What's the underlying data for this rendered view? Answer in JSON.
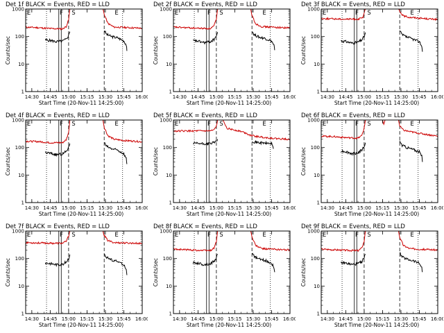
{
  "chart_data": {
    "type": "line",
    "layout": "3x3 grid of detector light curves",
    "xlabel": "Start Time (20-Nov-11 14:25:00)",
    "ylabel": "Counts/sec",
    "x_unit": "minutes after 14:25:00",
    "xlim": [
      0,
      95
    ],
    "xticks": [
      5,
      20,
      35,
      50,
      65,
      80,
      95
    ],
    "xtick_labels": [
      "14:30",
      "14:45",
      "15:00",
      "15:15",
      "15:30",
      "15:45",
      "16:00"
    ],
    "yscale": "log",
    "ylim": [
      1,
      1000
    ],
    "yticks": [
      1,
      10,
      100,
      1000
    ],
    "ytick_labels": [
      "1",
      "10",
      "100",
      "1000"
    ],
    "legend": "in title: BLACK = Events, RED = LLD",
    "series_colors": {
      "events": "#000000",
      "lld": "#cc0000"
    },
    "markers": [
      {
        "label": "E",
        "type": "label",
        "x": 0.5
      },
      {
        "label": "F",
        "type": "label",
        "x": 27
      },
      {
        "label": "S",
        "type": "label",
        "x": 37
      },
      {
        "label": "E",
        "type": "label",
        "x": 72
      },
      {
        "type": "dotted",
        "x": 17
      },
      {
        "type": "dotted",
        "x": 79
      },
      {
        "type": "solid",
        "x": 27
      },
      {
        "type": "solid",
        "x": 29
      },
      {
        "type": "dashed",
        "x": 35
      },
      {
        "type": "dashed",
        "x": 64
      }
    ],
    "panels": [
      {
        "title": "Det 1f BLACK = Events, RED = LLD",
        "lld": [
          [
            0,
            220
          ],
          [
            10,
            210
          ],
          [
            20,
            195
          ],
          [
            30,
            190
          ],
          [
            33,
            230
          ],
          [
            35,
            400
          ],
          [
            36,
            1000
          ],
          [
            63,
            1000
          ],
          [
            64,
            650
          ],
          [
            67,
            300
          ],
          [
            72,
            220
          ],
          [
            80,
            215
          ],
          [
            90,
            205
          ],
          [
            95,
            200
          ]
        ],
        "events": [
          [
            16,
            75
          ],
          [
            20,
            72
          ],
          [
            25,
            65
          ],
          [
            30,
            68
          ],
          [
            33,
            80
          ],
          [
            35,
            110
          ],
          [
            36,
            150
          ]
        ],
        "events2": [
          [
            64,
            170
          ],
          [
            66,
            120
          ],
          [
            70,
            100
          ],
          [
            75,
            90
          ],
          [
            80,
            70
          ],
          [
            82,
            50
          ],
          [
            82.5,
            30
          ]
        ]
      },
      {
        "title": "Det 2f BLACK = Events, RED = LLD",
        "lld": [
          [
            0,
            220
          ],
          [
            10,
            210
          ],
          [
            20,
            200
          ],
          [
            30,
            195
          ],
          [
            33,
            240
          ],
          [
            35,
            420
          ],
          [
            36,
            1000
          ],
          [
            63,
            1000
          ],
          [
            64,
            600
          ],
          [
            67,
            290
          ],
          [
            72,
            230
          ],
          [
            80,
            220
          ],
          [
            90,
            210
          ],
          [
            95,
            205
          ]
        ],
        "events": [
          [
            16,
            70
          ],
          [
            20,
            68
          ],
          [
            25,
            60
          ],
          [
            30,
            65
          ],
          [
            33,
            78
          ],
          [
            35,
            105
          ],
          [
            36,
            145
          ]
        ],
        "events2": [
          [
            64,
            160
          ],
          [
            66,
            115
          ],
          [
            70,
            95
          ],
          [
            75,
            85
          ],
          [
            80,
            68
          ],
          [
            82,
            48
          ],
          [
            82.5,
            32
          ]
        ]
      },
      {
        "title": "Det 3f BLACK = Events, RED = LLD",
        "lld": [
          [
            0,
            450
          ],
          [
            10,
            440
          ],
          [
            20,
            430
          ],
          [
            30,
            430
          ],
          [
            34,
            480
          ],
          [
            35,
            700
          ],
          [
            36,
            1000
          ],
          [
            63,
            1000
          ],
          [
            64,
            800
          ],
          [
            67,
            560
          ],
          [
            72,
            500
          ],
          [
            80,
            470
          ],
          [
            90,
            430
          ],
          [
            95,
            420
          ]
        ],
        "events": [
          [
            16,
            70
          ],
          [
            20,
            66
          ],
          [
            25,
            58
          ],
          [
            30,
            62
          ],
          [
            33,
            75
          ],
          [
            35,
            100
          ],
          [
            36,
            140
          ]
        ],
        "events2": [
          [
            64,
            160
          ],
          [
            66,
            115
          ],
          [
            70,
            95
          ],
          [
            75,
            80
          ],
          [
            80,
            65
          ],
          [
            82,
            45
          ],
          [
            82.5,
            28
          ]
        ]
      },
      {
        "title": "Det 4f BLACK = Events, RED = LLD",
        "lld": [
          [
            0,
            170
          ],
          [
            10,
            165
          ],
          [
            20,
            150
          ],
          [
            30,
            150
          ],
          [
            33,
            190
          ],
          [
            35,
            350
          ],
          [
            36,
            1000
          ],
          [
            63,
            1000
          ],
          [
            64,
            550
          ],
          [
            67,
            270
          ],
          [
            72,
            200
          ],
          [
            80,
            180
          ],
          [
            90,
            170
          ],
          [
            95,
            160
          ]
        ],
        "events": [
          [
            16,
            65
          ],
          [
            20,
            62
          ],
          [
            25,
            55
          ],
          [
            30,
            58
          ],
          [
            33,
            72
          ],
          [
            35,
            100
          ],
          [
            36,
            140
          ]
        ],
        "events2": [
          [
            64,
            150
          ],
          [
            66,
            110
          ],
          [
            70,
            90
          ],
          [
            75,
            80
          ],
          [
            80,
            60
          ],
          [
            82,
            40
          ],
          [
            82.5,
            25
          ]
        ]
      },
      {
        "title": "Det 5f BLACK = Events, RED = LLD",
        "lld": [
          [
            0,
            400
          ],
          [
            10,
            400
          ],
          [
            20,
            400
          ],
          [
            30,
            400
          ],
          [
            33,
            430
          ],
          [
            35,
            600
          ],
          [
            36,
            1000
          ],
          [
            40,
            1000
          ],
          [
            42,
            700
          ],
          [
            44,
            500
          ],
          [
            48,
            450
          ],
          [
            54,
            400
          ],
          [
            58,
            350
          ],
          [
            63,
            280
          ],
          [
            66,
            260
          ],
          [
            75,
            230
          ],
          [
            85,
            210
          ],
          [
            95,
            200
          ]
        ],
        "events": [
          [
            16,
            140
          ],
          [
            20,
            140
          ],
          [
            25,
            135
          ],
          [
            30,
            140
          ],
          [
            33,
            150
          ],
          [
            35,
            170
          ],
          [
            36,
            200
          ]
        ],
        "events2": [
          [
            64,
            180
          ],
          [
            66,
            160
          ],
          [
            70,
            150
          ],
          [
            75,
            145
          ],
          [
            80,
            140
          ],
          [
            81,
            120
          ],
          [
            81.5,
            90
          ]
        ]
      },
      {
        "title": "Det 6f BLACK = Events, RED = LLD",
        "lld": [
          [
            0,
            260
          ],
          [
            10,
            250
          ],
          [
            20,
            230
          ],
          [
            30,
            220
          ],
          [
            33,
            270
          ],
          [
            35,
            500
          ],
          [
            36,
            1000
          ],
          [
            50,
            1000
          ],
          [
            51,
            700
          ],
          [
            52,
            1000
          ],
          [
            63,
            1000
          ],
          [
            64,
            600
          ],
          [
            67,
            430
          ],
          [
            72,
            380
          ],
          [
            80,
            330
          ],
          [
            90,
            280
          ],
          [
            95,
            260
          ]
        ],
        "events": [
          [
            16,
            75
          ],
          [
            20,
            72
          ],
          [
            25,
            60
          ],
          [
            30,
            65
          ],
          [
            33,
            80
          ],
          [
            35,
            110
          ],
          [
            36,
            150
          ]
        ],
        "events2": [
          [
            64,
            170
          ],
          [
            66,
            120
          ],
          [
            70,
            100
          ],
          [
            75,
            85
          ],
          [
            80,
            70
          ],
          [
            82,
            48
          ],
          [
            82.5,
            30
          ]
        ]
      },
      {
        "title": "Det 7f BLACK = Events, RED = LLD",
        "lld": [
          [
            0,
            380
          ],
          [
            10,
            370
          ],
          [
            20,
            360
          ],
          [
            30,
            360
          ],
          [
            33,
            420
          ],
          [
            35,
            650
          ],
          [
            36,
            1000
          ],
          [
            63,
            1000
          ],
          [
            64,
            700
          ],
          [
            67,
            450
          ],
          [
            72,
            380
          ],
          [
            80,
            370
          ],
          [
            90,
            360
          ],
          [
            95,
            350
          ]
        ],
        "events": [
          [
            16,
            70
          ],
          [
            20,
            66
          ],
          [
            25,
            60
          ],
          [
            30,
            62
          ],
          [
            33,
            75
          ],
          [
            35,
            100
          ],
          [
            36,
            140
          ]
        ],
        "events2": [
          [
            64,
            150
          ],
          [
            66,
            110
          ],
          [
            70,
            90
          ],
          [
            75,
            78
          ],
          [
            80,
            60
          ],
          [
            82,
            40
          ],
          [
            82.5,
            25
          ]
        ]
      },
      {
        "title": "Det 8f BLACK = Events, RED = LLD",
        "lld": [
          [
            0,
            220
          ],
          [
            10,
            210
          ],
          [
            20,
            200
          ],
          [
            30,
            195
          ],
          [
            33,
            240
          ],
          [
            35,
            420
          ],
          [
            36,
            1000
          ],
          [
            63,
            1000
          ],
          [
            64,
            600
          ],
          [
            67,
            300
          ],
          [
            72,
            230
          ],
          [
            80,
            220
          ],
          [
            90,
            210
          ],
          [
            95,
            205
          ]
        ],
        "events": [
          [
            16,
            70
          ],
          [
            20,
            68
          ],
          [
            25,
            60
          ],
          [
            30,
            65
          ],
          [
            33,
            78
          ],
          [
            35,
            105
          ],
          [
            36,
            145
          ]
        ],
        "events2": [
          [
            64,
            160
          ],
          [
            66,
            115
          ],
          [
            70,
            95
          ],
          [
            75,
            85
          ],
          [
            80,
            68
          ],
          [
            82,
            48
          ],
          [
            82.5,
            32
          ]
        ]
      },
      {
        "title": "Det 9f BLACK = Events, RED = LLD",
        "lld": [
          [
            0,
            220
          ],
          [
            10,
            210
          ],
          [
            20,
            200
          ],
          [
            30,
            195
          ],
          [
            33,
            240
          ],
          [
            35,
            420
          ],
          [
            36,
            1000
          ],
          [
            63,
            1000
          ],
          [
            64,
            600
          ],
          [
            67,
            300
          ],
          [
            72,
            230
          ],
          [
            80,
            220
          ],
          [
            90,
            210
          ],
          [
            95,
            205
          ]
        ],
        "events": [
          [
            16,
            70
          ],
          [
            20,
            68
          ],
          [
            25,
            60
          ],
          [
            30,
            65
          ],
          [
            33,
            78
          ],
          [
            35,
            105
          ],
          [
            36,
            145
          ]
        ],
        "events2": [
          [
            64,
            160
          ],
          [
            66,
            115
          ],
          [
            70,
            95
          ],
          [
            75,
            85
          ],
          [
            80,
            68
          ],
          [
            82,
            48
          ],
          [
            82.5,
            32
          ]
        ]
      }
    ]
  }
}
